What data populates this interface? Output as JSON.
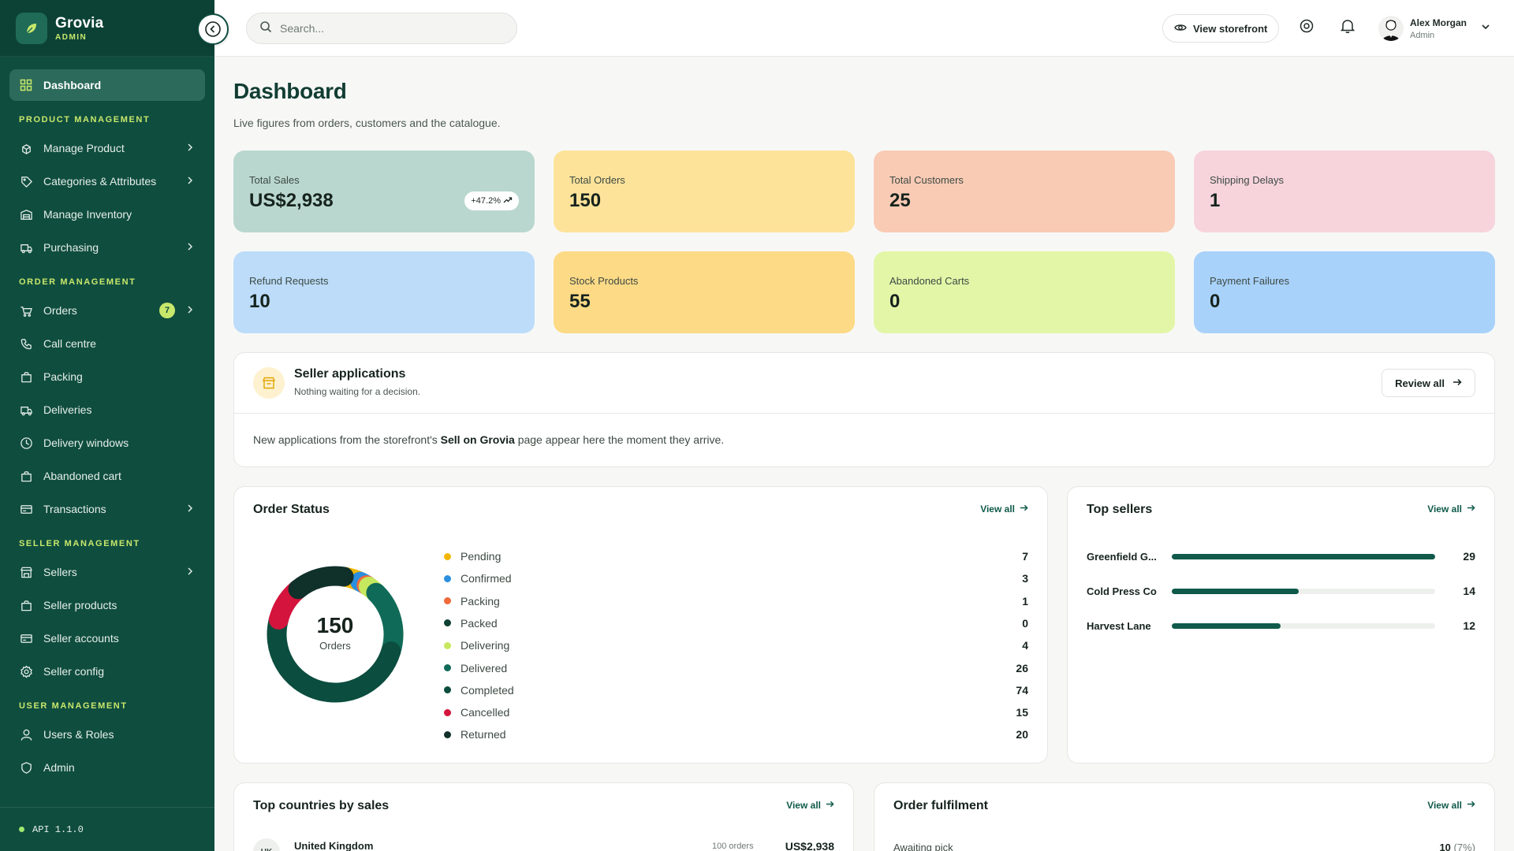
{
  "brand": {
    "name": "Grovia",
    "sub": "ADMIN"
  },
  "sidebar": {
    "dashboard": "Dashboard",
    "sections": [
      {
        "label": "PRODUCT MANAGEMENT",
        "items": [
          {
            "label": "Manage Product",
            "icon": "box-icon",
            "chevron": true
          },
          {
            "label": "Categories & Attributes",
            "icon": "tag-icon",
            "chevron": true
          },
          {
            "label": "Manage Inventory",
            "icon": "warehouse-icon",
            "chevron": false
          },
          {
            "label": "Purchasing",
            "icon": "truck-icon",
            "chevron": true
          }
        ]
      },
      {
        "label": "ORDER MANAGEMENT",
        "items": [
          {
            "label": "Orders",
            "icon": "cart-icon",
            "chevron": true,
            "badge": "7"
          },
          {
            "label": "Call centre",
            "icon": "phone-icon",
            "chevron": false
          },
          {
            "label": "Packing",
            "icon": "bag-icon",
            "chevron": false
          },
          {
            "label": "Deliveries",
            "icon": "truck-icon",
            "chevron": false
          },
          {
            "label": "Delivery windows",
            "icon": "clock-icon",
            "chevron": false
          },
          {
            "label": "Abandoned cart",
            "icon": "bag-icon",
            "chevron": false
          },
          {
            "label": "Transactions",
            "icon": "card-icon",
            "chevron": true
          }
        ]
      },
      {
        "label": "SELLER MANAGEMENT",
        "items": [
          {
            "label": "Sellers",
            "icon": "store-icon",
            "chevron": true
          },
          {
            "label": "Seller products",
            "icon": "bag-icon",
            "chevron": false
          },
          {
            "label": "Seller accounts",
            "icon": "card-icon",
            "chevron": false
          },
          {
            "label": "Seller config",
            "icon": "gear-icon",
            "chevron": false
          }
        ]
      },
      {
        "label": "USER MANAGEMENT",
        "items": [
          {
            "label": "Users & Roles",
            "icon": "user-icon",
            "chevron": false
          },
          {
            "label": "Admin",
            "icon": "shield-icon",
            "chevron": false
          }
        ]
      }
    ],
    "footer": "API 1.1.0"
  },
  "topbar": {
    "search_placeholder": "Search...",
    "storefront_label": "View storefront",
    "user_name": "Alex Morgan",
    "user_role": "Admin"
  },
  "page": {
    "title": "Dashboard",
    "subtitle": "Live figures from orders, customers and the catalogue."
  },
  "kpis": [
    {
      "label": "Total Sales",
      "value": "US$2,938",
      "trend": "+47.2%",
      "color": "#b9d7cf"
    },
    {
      "label": "Total Orders",
      "value": "150",
      "color": "#fde39a"
    },
    {
      "label": "Total Customers",
      "value": "25",
      "color": "#f9cbb5"
    },
    {
      "label": "Shipping Delays",
      "value": "1",
      "color": "#f7d4dc"
    },
    {
      "label": "Refund Requests",
      "value": "10",
      "color": "#bcdcfa"
    },
    {
      "label": "Stock Products",
      "value": "55",
      "color": "#fdda86"
    },
    {
      "label": "Abandoned Carts",
      "value": "0",
      "color": "#e3f6a8"
    },
    {
      "label": "Payment Failures",
      "value": "0",
      "color": "#a9d2fb"
    }
  ],
  "seller_apps": {
    "title": "Seller applications",
    "subtitle": "Nothing waiting for a decision.",
    "review_label": "Review all",
    "body_pre": "New applications from the storefront's ",
    "body_bold": "Sell on Grovia",
    "body_post": " page appear here the moment they arrive."
  },
  "order_status": {
    "title": "Order Status",
    "view_all": "View all",
    "total": "150",
    "total_label": "Orders",
    "items": [
      {
        "label": "Pending",
        "value": 7,
        "color": "#f2b705"
      },
      {
        "label": "Confirmed",
        "value": 3,
        "color": "#2b8fe0"
      },
      {
        "label": "Packing",
        "value": 1,
        "color": "#f06a3a"
      },
      {
        "label": "Packed",
        "value": 0,
        "color": "#0f4034"
      },
      {
        "label": "Delivering",
        "value": 4,
        "color": "#c6e85f"
      },
      {
        "label": "Delivered",
        "value": 26,
        "color": "#0f6b58"
      },
      {
        "label": "Completed",
        "value": 74,
        "color": "#0b4d3e"
      },
      {
        "label": "Cancelled",
        "value": 15,
        "color": "#d4143c"
      },
      {
        "label": "Returned",
        "value": 20,
        "color": "#10302a"
      }
    ]
  },
  "top_sellers": {
    "title": "Top sellers",
    "view_all": "View all",
    "max": 29,
    "items": [
      {
        "name": "Greenfield G...",
        "value": 29
      },
      {
        "name": "Cold Press Co",
        "value": 14
      },
      {
        "name": "Harvest Lane",
        "value": 12
      }
    ]
  },
  "top_countries": {
    "title": "Top countries by sales",
    "view_all": "View all",
    "first_row": {
      "code": "UK",
      "name": "United Kingdom",
      "orders": "100 orders",
      "amount": "US$2,938"
    }
  },
  "fulfilment": {
    "title": "Order fulfilment",
    "view_all": "View all",
    "first_row": {
      "label": "Awaiting pick",
      "value": "10",
      "pct": "(7%)"
    }
  }
}
